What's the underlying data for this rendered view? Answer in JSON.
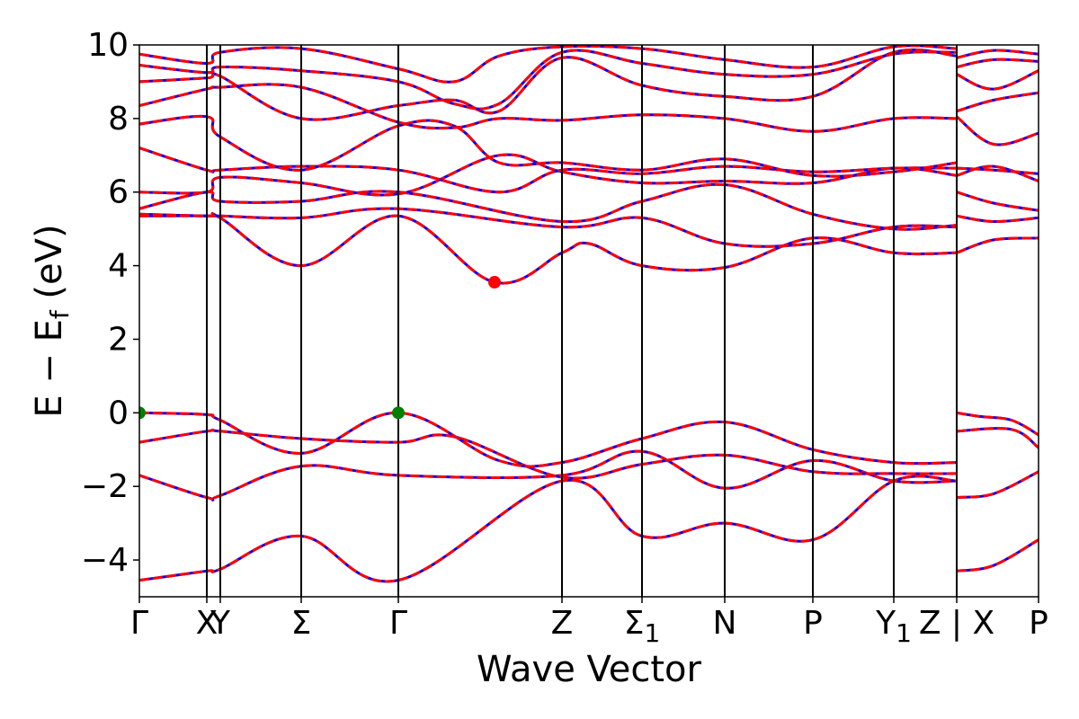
{
  "chart_data": {
    "type": "line",
    "xlabel": "Wave Vector",
    "ylabel": "E − E",
    "ylabel_sub": "f",
    "ylabel_unit": " (eV)",
    "ylim": [
      -5,
      10
    ],
    "xlim": [
      0,
      1
    ],
    "grid": false,
    "y_ticks": [
      {
        "value": -4,
        "label": "−4"
      },
      {
        "value": -2,
        "label": "−2"
      },
      {
        "value": 0,
        "label": "0"
      },
      {
        "value": 2,
        "label": "2"
      },
      {
        "value": 4,
        "label": "4"
      },
      {
        "value": 6,
        "label": "6"
      },
      {
        "value": 8,
        "label": "8"
      },
      {
        "value": 10,
        "label": "10"
      }
    ],
    "k_points": [
      {
        "pos": 0.0,
        "label": "Γ"
      },
      {
        "pos": 0.075,
        "label": "X"
      },
      {
        "pos": 0.09,
        "label": "Y"
      },
      {
        "pos": 0.18,
        "label": "Σ"
      },
      {
        "pos": 0.288,
        "label": "Γ"
      },
      {
        "pos": 0.47,
        "label": "Z"
      },
      {
        "pos": 0.559,
        "label": "Σ",
        "sub": "1"
      },
      {
        "pos": 0.651,
        "label": "N"
      },
      {
        "pos": 0.749,
        "label": "P"
      },
      {
        "pos": 0.839,
        "label": "Y",
        "sub": "1"
      },
      {
        "pos": 0.909,
        "label": "Z | X"
      },
      {
        "pos": 1.0,
        "label": "P"
      }
    ],
    "colors": {
      "band_solid": "#0000ff",
      "band_dashed": "#ff0000",
      "vbm_marker": "#008000",
      "cbm_marker": "#ff0000"
    },
    "vbm": [
      {
        "k": 0.0,
        "e": 0.0
      },
      {
        "k": 0.288,
        "e": 0.0
      }
    ],
    "cbm": [
      {
        "k": 0.395,
        "e": 3.55
      }
    ],
    "series": [
      {
        "points": [
          [
            0,
            -4.55
          ],
          [
            0.075,
            -4.3
          ],
          [
            0.09,
            -4.25
          ],
          [
            0.18,
            -3.35
          ],
          [
            0.288,
            -4.55
          ],
          [
            0.47,
            -1.85
          ],
          [
            0.559,
            -3.35
          ],
          [
            0.651,
            -3.0
          ],
          [
            0.749,
            -3.45
          ],
          [
            0.839,
            -1.85
          ],
          [
            0.909,
            -1.85
          ]
        ]
      },
      {
        "points": [
          [
            0,
            -1.7
          ],
          [
            0.075,
            -2.3
          ],
          [
            0.09,
            -2.25
          ],
          [
            0.18,
            -1.45
          ],
          [
            0.288,
            -1.7
          ],
          [
            0.47,
            -1.7
          ],
          [
            0.559,
            -1.05
          ],
          [
            0.651,
            -2.05
          ],
          [
            0.749,
            -1.3
          ],
          [
            0.839,
            -1.85
          ],
          [
            0.909,
            -1.85
          ]
        ]
      },
      {
        "points": [
          [
            0,
            -0.8
          ],
          [
            0.075,
            -0.5
          ],
          [
            0.09,
            -0.5
          ],
          [
            0.18,
            -0.7
          ],
          [
            0.288,
            -0.8
          ],
          [
            0.35,
            -0.65
          ],
          [
            0.47,
            -1.75
          ],
          [
            0.559,
            -1.4
          ],
          [
            0.651,
            -1.15
          ],
          [
            0.749,
            -1.6
          ],
          [
            0.839,
            -1.65
          ],
          [
            0.909,
            -1.65
          ]
        ]
      },
      {
        "points": [
          [
            0,
            0.0
          ],
          [
            0.075,
            -0.05
          ],
          [
            0.09,
            -0.2
          ],
          [
            0.18,
            -1.1
          ],
          [
            0.288,
            0.0
          ],
          [
            0.4,
            -1.3
          ],
          [
            0.47,
            -1.35
          ],
          [
            0.559,
            -0.7
          ],
          [
            0.651,
            -0.25
          ],
          [
            0.749,
            -1.0
          ],
          [
            0.839,
            -1.35
          ],
          [
            0.909,
            -1.35
          ]
        ]
      },
      {
        "points": [
          [
            0,
            5.35
          ],
          [
            0.075,
            5.35
          ],
          [
            0.09,
            5.3
          ],
          [
            0.18,
            4.0
          ],
          [
            0.288,
            5.35
          ],
          [
            0.395,
            3.55
          ],
          [
            0.47,
            4.35
          ],
          [
            0.5,
            4.6
          ],
          [
            0.559,
            4.0
          ],
          [
            0.651,
            3.95
          ],
          [
            0.749,
            4.75
          ],
          [
            0.839,
            4.35
          ],
          [
            0.909,
            4.35
          ]
        ]
      },
      {
        "points": [
          [
            0,
            5.4
          ],
          [
            0.075,
            5.35
          ],
          [
            0.09,
            5.35
          ],
          [
            0.18,
            5.3
          ],
          [
            0.288,
            5.55
          ],
          [
            0.47,
            5.05
          ],
          [
            0.559,
            5.3
          ],
          [
            0.651,
            4.6
          ],
          [
            0.749,
            4.6
          ],
          [
            0.839,
            5.05
          ],
          [
            0.909,
            5.05
          ]
        ]
      },
      {
        "points": [
          [
            0,
            5.55
          ],
          [
            0.075,
            6.0
          ],
          [
            0.09,
            5.75
          ],
          [
            0.18,
            5.75
          ],
          [
            0.288,
            6.0
          ],
          [
            0.47,
            5.2
          ],
          [
            0.559,
            5.75
          ],
          [
            0.651,
            6.2
          ],
          [
            0.749,
            5.4
          ],
          [
            0.839,
            5.0
          ],
          [
            0.909,
            5.1
          ]
        ]
      },
      {
        "points": [
          [
            0,
            6.0
          ],
          [
            0.075,
            6.0
          ],
          [
            0.09,
            6.4
          ],
          [
            0.18,
            6.25
          ],
          [
            0.288,
            5.95
          ],
          [
            0.4,
            7.0
          ],
          [
            0.47,
            6.55
          ],
          [
            0.559,
            6.25
          ],
          [
            0.651,
            6.3
          ],
          [
            0.749,
            6.25
          ],
          [
            0.839,
            6.65
          ],
          [
            0.909,
            6.45
          ]
        ]
      },
      {
        "points": [
          [
            0,
            7.2
          ],
          [
            0.075,
            6.6
          ],
          [
            0.09,
            6.6
          ],
          [
            0.18,
            6.7
          ],
          [
            0.288,
            6.6
          ],
          [
            0.4,
            6.0
          ],
          [
            0.47,
            6.6
          ],
          [
            0.559,
            6.5
          ],
          [
            0.651,
            6.7
          ],
          [
            0.749,
            6.55
          ],
          [
            0.839,
            6.65
          ],
          [
            0.909,
            6.65
          ]
        ]
      },
      {
        "points": [
          [
            0,
            7.85
          ],
          [
            0.075,
            8.05
          ],
          [
            0.09,
            7.5
          ],
          [
            0.18,
            6.6
          ],
          [
            0.288,
            7.8
          ],
          [
            0.35,
            7.8
          ],
          [
            0.4,
            6.8
          ],
          [
            0.47,
            6.8
          ],
          [
            0.559,
            6.6
          ],
          [
            0.651,
            6.9
          ],
          [
            0.749,
            6.45
          ],
          [
            0.839,
            6.55
          ],
          [
            0.909,
            6.8
          ]
        ]
      },
      {
        "points": [
          [
            0,
            8.35
          ],
          [
            0.075,
            8.8
          ],
          [
            0.09,
            8.85
          ],
          [
            0.18,
            8.85
          ],
          [
            0.288,
            7.9
          ],
          [
            0.35,
            7.75
          ],
          [
            0.4,
            8.0
          ],
          [
            0.47,
            7.95
          ],
          [
            0.559,
            8.1
          ],
          [
            0.651,
            8.0
          ],
          [
            0.749,
            7.65
          ],
          [
            0.839,
            8.0
          ],
          [
            0.909,
            8.0
          ]
        ]
      },
      {
        "points": [
          [
            0,
            9.0
          ],
          [
            0.075,
            9.1
          ],
          [
            0.09,
            9.15
          ],
          [
            0.18,
            8.0
          ],
          [
            0.288,
            8.35
          ],
          [
            0.35,
            8.5
          ],
          [
            0.4,
            8.2
          ],
          [
            0.47,
            9.65
          ],
          [
            0.559,
            8.9
          ],
          [
            0.651,
            8.6
          ],
          [
            0.749,
            8.6
          ],
          [
            0.839,
            9.8
          ],
          [
            0.909,
            9.7
          ]
        ]
      },
      {
        "points": [
          [
            0,
            9.45
          ],
          [
            0.075,
            9.25
          ],
          [
            0.09,
            9.4
          ],
          [
            0.18,
            9.3
          ],
          [
            0.288,
            9.0
          ],
          [
            0.35,
            8.4
          ],
          [
            0.4,
            8.4
          ],
          [
            0.47,
            9.8
          ],
          [
            0.559,
            9.5
          ],
          [
            0.651,
            9.2
          ],
          [
            0.749,
            9.2
          ],
          [
            0.839,
            9.75
          ],
          [
            0.909,
            9.8
          ]
        ]
      },
      {
        "points": [
          [
            0,
            9.75
          ],
          [
            0.075,
            9.5
          ],
          [
            0.09,
            9.8
          ],
          [
            0.18,
            9.9
          ],
          [
            0.288,
            9.35
          ],
          [
            0.35,
            9.0
          ],
          [
            0.4,
            9.7
          ],
          [
            0.47,
            9.95
          ],
          [
            0.559,
            9.9
          ],
          [
            0.651,
            9.6
          ],
          [
            0.749,
            9.4
          ],
          [
            0.839,
            9.95
          ],
          [
            0.909,
            9.9
          ]
        ]
      },
      {
        "points": [
          [
            0.909,
            0.0
          ],
          [
            0.935,
            -0.1
          ],
          [
            0.97,
            -0.2
          ],
          [
            1.0,
            -0.6
          ]
        ]
      },
      {
        "points": [
          [
            0.909,
            -0.5
          ],
          [
            0.97,
            -0.45
          ],
          [
            1.0,
            -0.95
          ]
        ]
      },
      {
        "points": [
          [
            0.909,
            -2.3
          ],
          [
            0.95,
            -2.2
          ],
          [
            1.0,
            -1.6
          ]
        ]
      },
      {
        "points": [
          [
            0.909,
            -4.3
          ],
          [
            0.95,
            -4.15
          ],
          [
            1.0,
            -3.45
          ]
        ]
      },
      {
        "points": [
          [
            0.909,
            4.35
          ],
          [
            0.95,
            4.7
          ],
          [
            1.0,
            4.75
          ]
        ]
      },
      {
        "points": [
          [
            0.909,
            5.35
          ],
          [
            0.95,
            5.2
          ],
          [
            1.0,
            5.3
          ]
        ]
      },
      {
        "points": [
          [
            0.909,
            6.0
          ],
          [
            0.95,
            5.7
          ],
          [
            1.0,
            5.5
          ]
        ]
      },
      {
        "points": [
          [
            0.909,
            6.45
          ],
          [
            0.95,
            6.7
          ],
          [
            1.0,
            6.3
          ]
        ]
      },
      {
        "points": [
          [
            0.909,
            6.65
          ],
          [
            0.95,
            6.6
          ],
          [
            1.0,
            6.5
          ]
        ]
      },
      {
        "points": [
          [
            0.909,
            8.05
          ],
          [
            0.95,
            7.3
          ],
          [
            1.0,
            7.6
          ]
        ]
      },
      {
        "points": [
          [
            0.909,
            8.2
          ],
          [
            0.95,
            8.5
          ],
          [
            1.0,
            8.7
          ]
        ]
      },
      {
        "points": [
          [
            0.909,
            9.2
          ],
          [
            0.95,
            8.8
          ],
          [
            1.0,
            9.3
          ]
        ]
      },
      {
        "points": [
          [
            0.909,
            9.4
          ],
          [
            0.95,
            9.6
          ],
          [
            1.0,
            9.55
          ]
        ]
      },
      {
        "points": [
          [
            0.909,
            9.65
          ],
          [
            0.95,
            9.85
          ],
          [
            1.0,
            9.75
          ]
        ]
      }
    ]
  }
}
